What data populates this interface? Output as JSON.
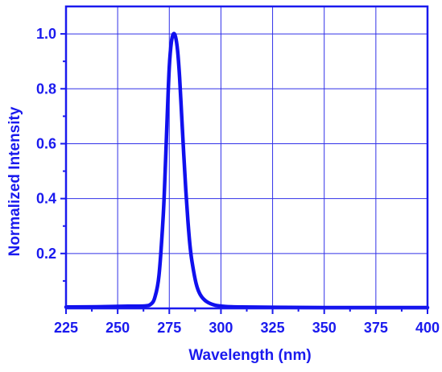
{
  "chart_data": {
    "type": "line",
    "title": "",
    "xlabel": "Wavelength (nm)",
    "ylabel": "Normalized Intensity",
    "xlim": [
      225,
      400
    ],
    "ylim": [
      0,
      1.1
    ],
    "xticks": [
      225,
      250,
      275,
      300,
      325,
      350,
      375,
      400
    ],
    "xtick_labels": [
      "225",
      "250",
      "275",
      "300",
      "325",
      "350",
      "375",
      "400"
    ],
    "yticks": [
      0.2,
      0.4,
      0.6,
      0.8,
      1.0
    ],
    "ytick_labels": [
      "0.2",
      "0.4",
      "0.6",
      "0.8",
      "1.0"
    ],
    "grid": true,
    "legend": "none",
    "colors": {
      "line": "#1010ee",
      "axes": "#1a1aee",
      "grid": "#3030e8",
      "text": "#1a1aee"
    },
    "series": [
      {
        "x": [
          225,
          240,
          255,
          263,
          266,
          268,
          270,
          272,
          273,
          274,
          275,
          276,
          277,
          278,
          279,
          280,
          281,
          282,
          283,
          284,
          285,
          286,
          288,
          290,
          293,
          297,
          302,
          310,
          325,
          350,
          375,
          400
        ],
        "y": [
          0.005,
          0.006,
          0.008,
          0.009,
          0.015,
          0.04,
          0.12,
          0.33,
          0.5,
          0.7,
          0.88,
          0.97,
          1.0,
          0.99,
          0.94,
          0.84,
          0.7,
          0.56,
          0.43,
          0.32,
          0.23,
          0.17,
          0.09,
          0.05,
          0.025,
          0.012,
          0.007,
          0.005,
          0.004,
          0.003,
          0.003,
          0.003
        ]
      }
    ]
  }
}
